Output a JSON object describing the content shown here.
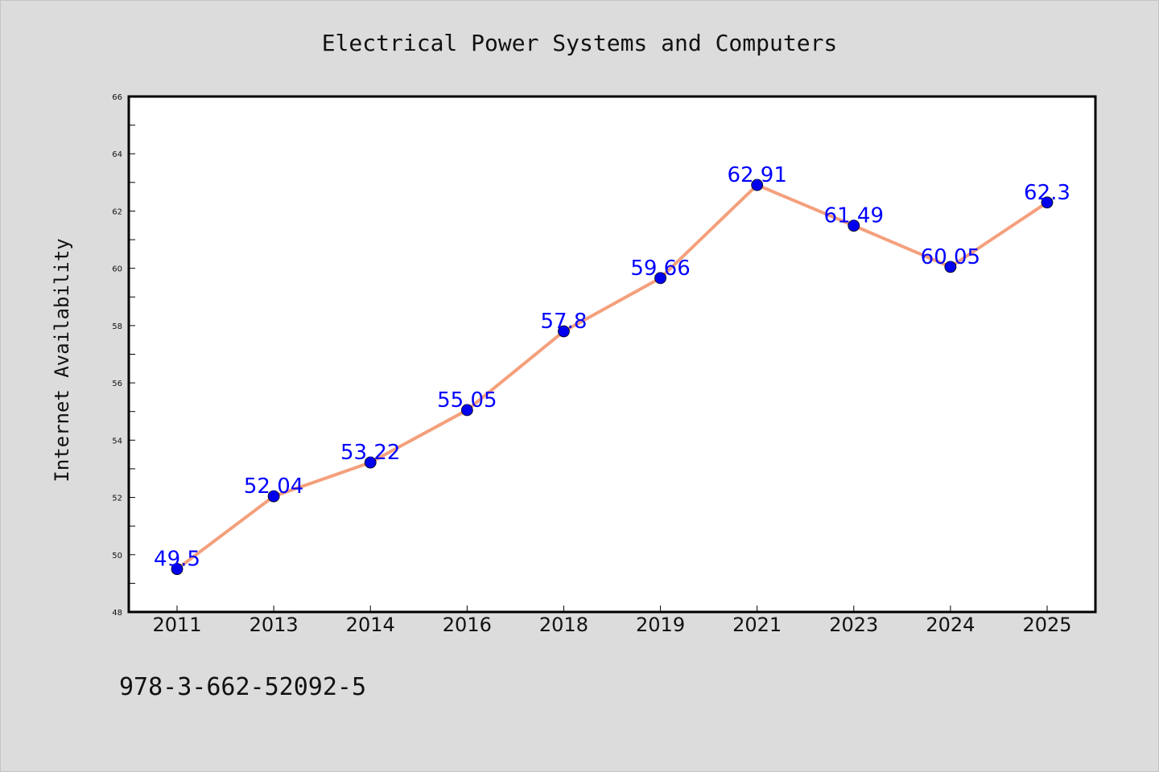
{
  "chart_data": {
    "type": "line",
    "title": "Electrical Power Systems and Computers",
    "xlabel": "",
    "ylabel": "Internet Availability",
    "categories": [
      "2011",
      "2013",
      "2014",
      "2016",
      "2018",
      "2019",
      "2021",
      "2023",
      "2024",
      "2025"
    ],
    "series": [
      {
        "values": [
          49.5,
          52.04,
          53.22,
          55.05,
          57.8,
          59.66,
          62.91,
          61.49,
          60.05,
          62.3
        ],
        "labels": [
          "49.5",
          "52.04",
          "53.22",
          "55.05",
          "57.8",
          "59.66",
          "62.91",
          "61.49",
          "60.05",
          "62.3"
        ],
        "line_color": "#f4a07c",
        "marker_color": "#0000ee"
      }
    ],
    "ylim": [
      48,
      66
    ],
    "yticks": [
      "48",
      "50",
      "52",
      "54",
      "56",
      "58",
      "60",
      "62",
      "64",
      "66"
    ],
    "grid": false,
    "legend": "none"
  },
  "footnote": "978-3-662-52092-5",
  "colors": {
    "background": "#dcdcdc",
    "plot_area": "#ffffff",
    "line": "#f4a07c",
    "marker": "#0000ee",
    "label": "#0000ff"
  }
}
